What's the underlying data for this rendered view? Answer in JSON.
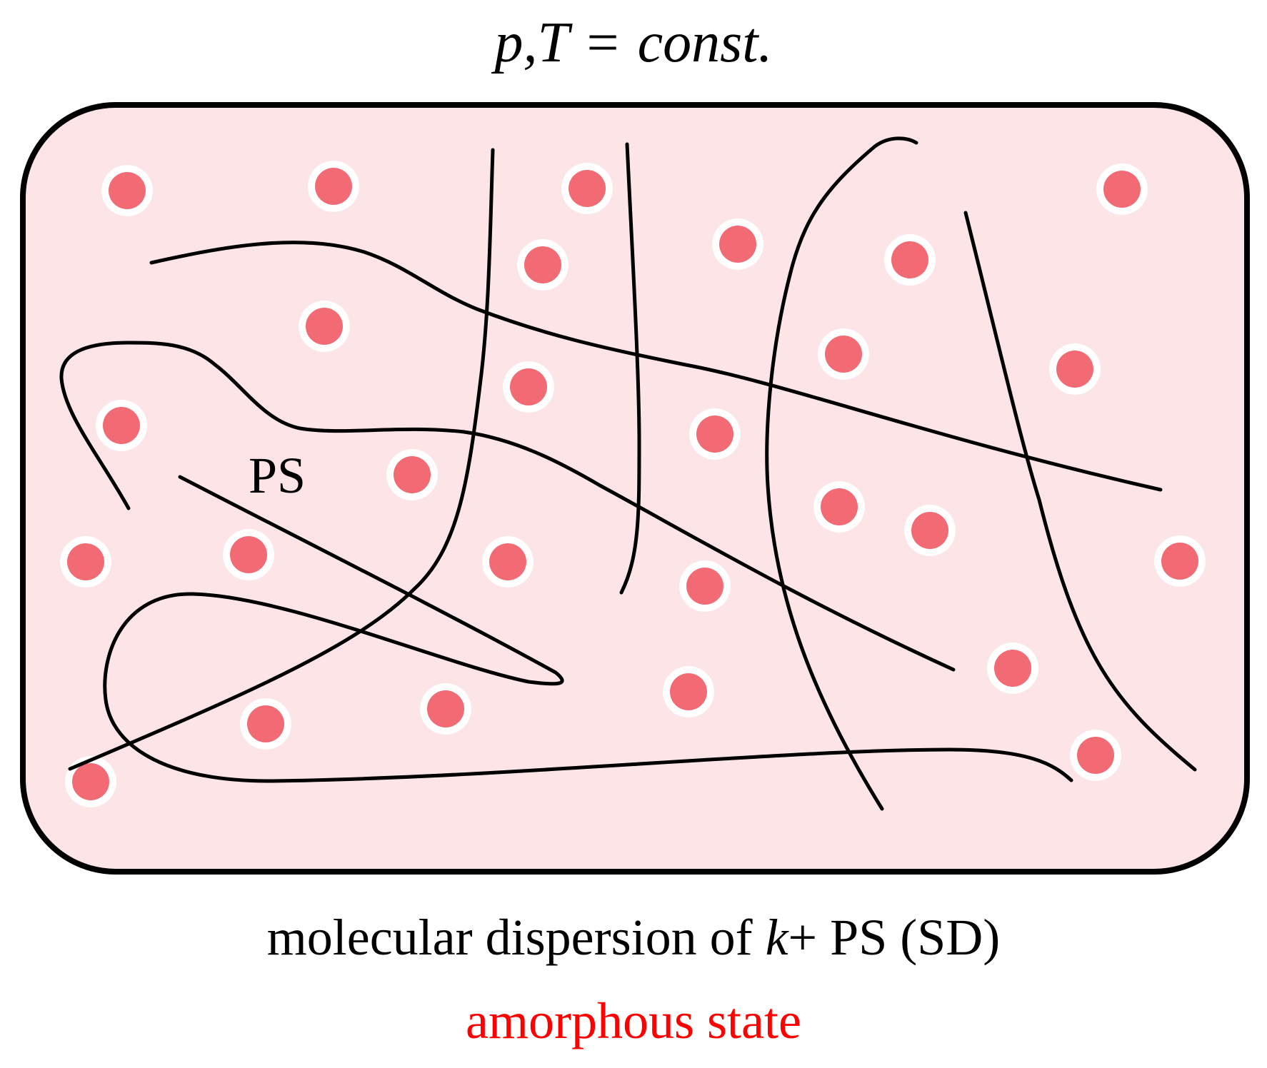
{
  "condition": {
    "p": "p",
    "sep": ",",
    "T": "T",
    "eq": "=",
    "const": "const."
  },
  "chain_label": "PS",
  "caption": {
    "line1_prefix": "molecular dispersion of ",
    "line1_k": "k",
    "line1_suffix": "+ PS (SD)",
    "line2": "amorphous state"
  },
  "colors": {
    "container_fill": "#fde4e6",
    "container_stroke": "#000000",
    "molecule_fill": "#f26b74",
    "molecule_ring": "#ffffff",
    "chain_stroke": "#000000",
    "state_text": "#ff0000"
  },
  "icons": {
    "molecule": "molecule-dot-icon",
    "chain": "polymer-chain-icon"
  }
}
